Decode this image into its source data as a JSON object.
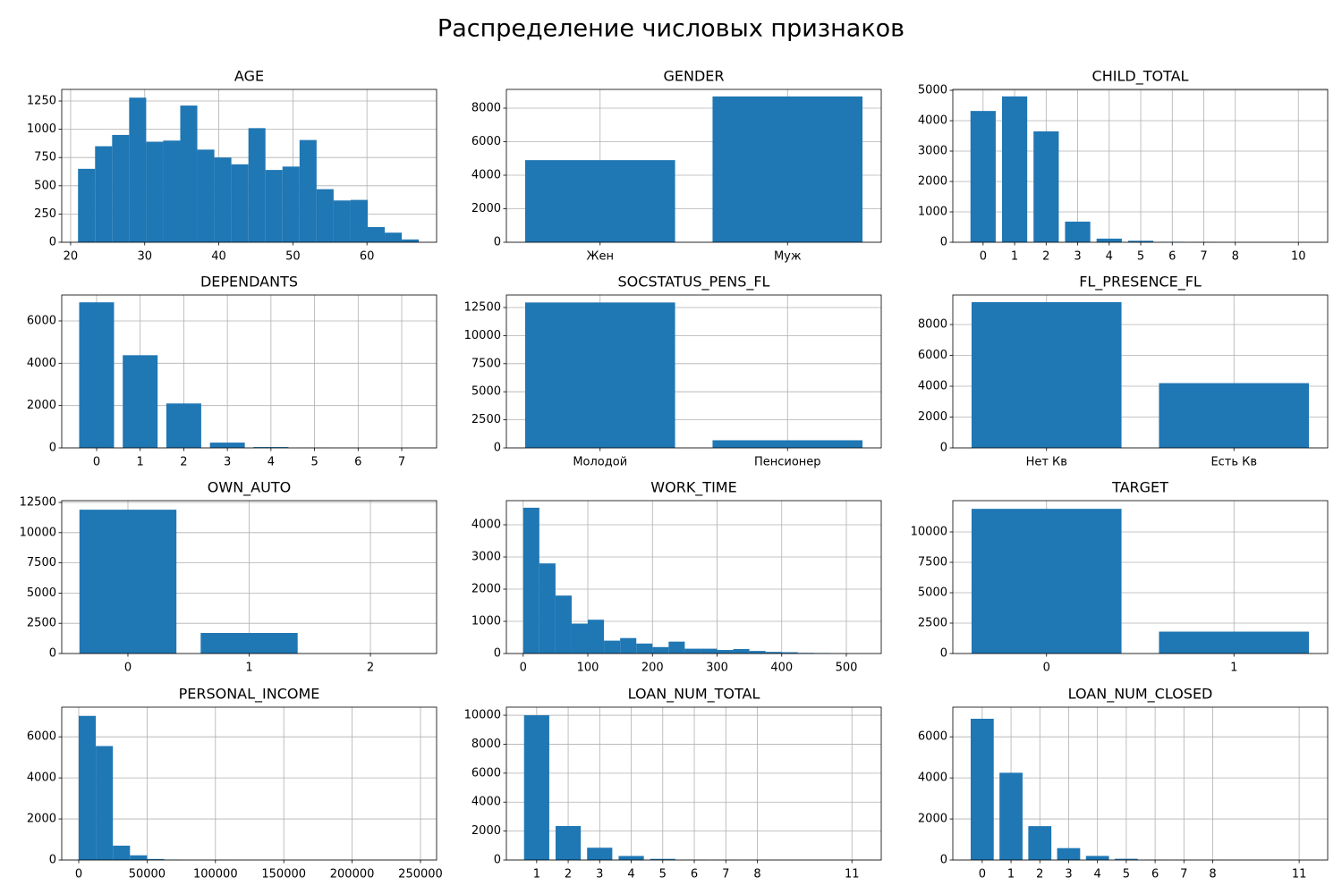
{
  "title": "Распределение числовых признаков",
  "chart_data": [
    {
      "type": "histogram",
      "title": "AGE",
      "color": "#1f77b4",
      "grid": true,
      "bins": [
        21,
        23.3,
        25.6,
        27.9,
        30.2,
        32.5,
        34.8,
        37.1,
        39.4,
        41.7,
        44,
        46.3,
        48.6,
        50.9,
        53.2,
        55.5,
        57.8,
        60.1,
        62.4,
        64.7,
        67
      ],
      "values": [
        650,
        850,
        950,
        1280,
        890,
        900,
        1210,
        820,
        750,
        690,
        1010,
        640,
        670,
        905,
        470,
        370,
        375,
        135,
        85,
        25
      ],
      "xlim": [
        18.8,
        69.4
      ],
      "ylim": [
        0,
        1353
      ],
      "xticks": [
        20,
        30,
        40,
        50,
        60
      ],
      "yticks": [
        0,
        250,
        500,
        750,
        1000,
        1250
      ]
    },
    {
      "type": "bar",
      "title": "GENDER",
      "color": "#1f77b4",
      "grid": true,
      "categories": [
        "Жен",
        "Муж"
      ],
      "values": [
        4900,
        8700
      ],
      "ylim": [
        0,
        9120
      ],
      "yticks": [
        0,
        2000,
        4000,
        6000,
        8000
      ]
    },
    {
      "type": "bar",
      "title": "CHILD_TOTAL",
      "color": "#1f77b4",
      "grid": true,
      "x": [
        0,
        1,
        2,
        3,
        4,
        5,
        6,
        7,
        8,
        10
      ],
      "values": [
        4320,
        4800,
        3650,
        680,
        120,
        50,
        15,
        10,
        3,
        2
      ],
      "xlim": [
        -0.96,
        10.93
      ],
      "ylim": [
        0,
        5030
      ],
      "xticks": [
        0,
        1,
        2,
        3,
        4,
        5,
        6,
        7,
        8,
        10
      ],
      "yticks": [
        0,
        1000,
        2000,
        3000,
        4000,
        5000
      ]
    },
    {
      "type": "bar",
      "title": "DEPENDANTS",
      "color": "#1f77b4",
      "grid": true,
      "x": [
        0,
        1,
        2,
        3,
        4,
        5,
        6,
        7
      ],
      "values": [
        6880,
        4380,
        2100,
        250,
        40,
        8,
        3,
        2
      ],
      "xlim": [
        -0.8,
        7.8
      ],
      "ylim": [
        0,
        7225
      ],
      "xticks": [
        0,
        1,
        2,
        3,
        4,
        5,
        6,
        7
      ],
      "yticks": [
        0,
        2000,
        4000,
        6000
      ]
    },
    {
      "type": "bar",
      "title": "SOCSTATUS_PENS_FL",
      "color": "#1f77b4",
      "grid": true,
      "categories": [
        "Молодой",
        "Пенсионер"
      ],
      "values": [
        12950,
        680
      ],
      "ylim": [
        0,
        13615
      ],
      "yticks": [
        0,
        2500,
        5000,
        7500,
        10000,
        12500
      ]
    },
    {
      "type": "bar",
      "title": "FL_PRESENCE_FL",
      "color": "#1f77b4",
      "grid": true,
      "categories": [
        "Нет Кв",
        "Есть Кв"
      ],
      "values": [
        9450,
        4200
      ],
      "ylim": [
        0,
        9913
      ],
      "yticks": [
        0,
        2000,
        4000,
        6000,
        8000
      ]
    },
    {
      "type": "bar",
      "title": "OWN_AUTO",
      "color": "#1f77b4",
      "grid": true,
      "x": [
        0,
        1,
        2
      ],
      "values": [
        11900,
        1700,
        2
      ],
      "xlim": [
        -0.546,
        2.546
      ],
      "ylim": [
        0,
        12648
      ],
      "xticks": [
        0,
        1,
        2
      ],
      "yticks": [
        0,
        2500,
        5000,
        7500,
        10000,
        12500
      ]
    },
    {
      "type": "histogram",
      "title": "WORK_TIME",
      "color": "#1f77b4",
      "grid": true,
      "bins": [
        0,
        25,
        50,
        75,
        100,
        125,
        150,
        175,
        200,
        225,
        250,
        275,
        300,
        325,
        350,
        375,
        400,
        425,
        450,
        475,
        500
      ],
      "values": [
        4530,
        2800,
        1800,
        930,
        1050,
        400,
        480,
        310,
        200,
        370,
        150,
        150,
        110,
        140,
        80,
        50,
        40,
        20,
        15,
        5
      ],
      "xlim": [
        -26,
        554
      ],
      "ylim": [
        0,
        4750
      ],
      "xticks": [
        0,
        100,
        200,
        300,
        400,
        500
      ],
      "yticks": [
        0,
        1000,
        2000,
        3000,
        4000
      ]
    },
    {
      "type": "bar",
      "title": "TARGET",
      "color": "#1f77b4",
      "grid": true,
      "x": [
        0,
        1
      ],
      "values": [
        11900,
        1800
      ],
      "xlim": [
        -0.5,
        1.5
      ],
      "ylim": [
        0,
        12574
      ],
      "xticks": [
        0,
        1
      ],
      "yticks": [
        0,
        2500,
        5000,
        7500,
        10000
      ]
    },
    {
      "type": "histogram",
      "title": "PERSONAL_INCOME",
      "color": "#1f77b4",
      "grid": true,
      "bins": [
        0,
        12500,
        25000,
        37500,
        50000,
        62500,
        75000,
        87500,
        100000,
        112500,
        125000,
        137500,
        150000,
        162500,
        175000,
        187500,
        200000,
        212500,
        225000,
        237500,
        250000
      ],
      "values": [
        7020,
        5550,
        700,
        230,
        50,
        20,
        5,
        3,
        2,
        1,
        0,
        0,
        0,
        0,
        0,
        0,
        0,
        0,
        0,
        1
      ],
      "xlim": [
        -12430,
        261780
      ],
      "ylim": [
        0,
        7445
      ],
      "xticks": [
        0,
        50000,
        100000,
        150000,
        200000,
        250000
      ],
      "yticks": [
        0,
        2000,
        4000,
        6000
      ]
    },
    {
      "type": "bar",
      "title": "LOAN_NUM_TOTAL",
      "color": "#1f77b4",
      "grid": true,
      "x": [
        1,
        2,
        3,
        4,
        5,
        6,
        7,
        8,
        11
      ],
      "values": [
        10000,
        2350,
        850,
        280,
        80,
        20,
        8,
        3,
        1
      ],
      "xlim": [
        0.04,
        11.93
      ],
      "ylim": [
        0,
        10560
      ],
      "xticks": [
        1,
        2,
        3,
        4,
        5,
        6,
        7,
        8,
        11
      ],
      "yticks": [
        0,
        2000,
        4000,
        6000,
        8000,
        10000
      ]
    },
    {
      "type": "bar",
      "title": "LOAN_NUM_CLOSED",
      "color": "#1f77b4",
      "grid": true,
      "x": [
        0,
        1,
        2,
        3,
        4,
        5,
        6,
        7,
        8,
        11
      ],
      "values": [
        6880,
        4250,
        1650,
        580,
        200,
        60,
        15,
        5,
        2,
        1
      ],
      "xlim": [
        -1.02,
        11.99
      ],
      "ylim": [
        0,
        7445
      ],
      "xticks": [
        0,
        1,
        2,
        3,
        4,
        5,
        6,
        7,
        8,
        11
      ],
      "yticks": [
        0,
        2000,
        4000,
        6000
      ]
    }
  ]
}
